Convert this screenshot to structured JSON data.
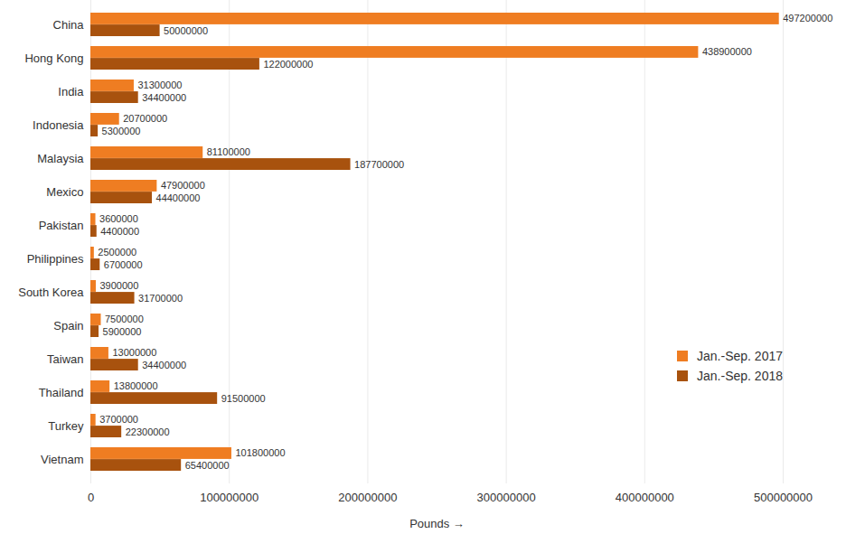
{
  "chart_data": {
    "type": "bar",
    "orientation": "horizontal",
    "xlabel": "Pounds",
    "categories": [
      "China",
      "Hong Kong",
      "India",
      "Indonesia",
      "Malaysia",
      "Mexico",
      "Pakistan",
      "Philippines",
      "South Korea",
      "Spain",
      "Taiwan",
      "Thailand",
      "Turkey",
      "Vietnam"
    ],
    "series": [
      {
        "name": "Jan.-Sep. 2017",
        "color": "#EF7D22",
        "values": [
          497200000,
          438900000,
          31300000,
          20700000,
          81100000,
          47900000,
          3600000,
          2500000,
          3900000,
          7500000,
          13000000,
          13800000,
          3700000,
          101800000
        ]
      },
      {
        "name": "Jan.-Sep. 2018",
        "color": "#A8520E",
        "values": [
          50000000,
          122000000,
          34400000,
          5300000,
          187700000,
          44400000,
          4400000,
          6700000,
          31700000,
          5900000,
          34400000,
          91500000,
          22300000,
          65400000
        ]
      }
    ],
    "xlim": [
      0,
      500000000
    ],
    "xticks": [
      0,
      100000000,
      200000000,
      300000000,
      400000000,
      500000000
    ],
    "grid": true,
    "data_labels": true,
    "legend": "bottom-right"
  }
}
